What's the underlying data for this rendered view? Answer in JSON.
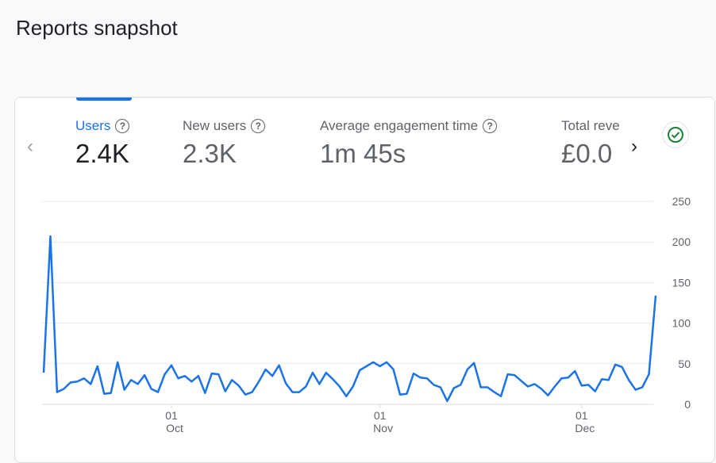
{
  "page_title": "Reports snapshot",
  "metrics": [
    {
      "label": "Users",
      "value": "2.4K",
      "active": true
    },
    {
      "label": "New users",
      "value": "2.3K"
    },
    {
      "label": "Average engagement time",
      "value": "1m 45s"
    },
    {
      "label": "Total reve",
      "value": "£0.0"
    }
  ],
  "nav": {
    "prev_icon": "chevron-left-icon",
    "next_icon": "chevron-right-icon",
    "status_icon": "check-circle-icon"
  },
  "colors": {
    "accent": "#1a73e8",
    "status_ok": "#188038"
  },
  "chart_data": {
    "type": "line",
    "x_start": "Sep 12",
    "x_end": "Dec 12",
    "x_ticks": [
      {
        "day": "01",
        "month": "Oct",
        "index": 19
      },
      {
        "day": "01",
        "month": "Nov",
        "index": 50
      },
      {
        "day": "01",
        "month": "Dec",
        "index": 80
      }
    ],
    "y_ticks": [
      0,
      50,
      100,
      150,
      200,
      250
    ],
    "ylim": [
      0,
      250
    ],
    "grid": true,
    "y_axis_side": "right",
    "values": [
      39,
      207,
      15,
      19,
      27,
      28,
      32,
      25,
      47,
      13,
      14,
      52,
      18,
      30,
      25,
      36,
      19,
      15,
      37,
      48,
      32,
      35,
      28,
      35,
      14,
      38,
      37,
      16,
      30,
      23,
      12,
      15,
      28,
      43,
      35,
      48,
      26,
      15,
      15,
      22,
      39,
      25,
      39,
      31,
      22,
      10,
      22,
      42,
      47,
      52,
      47,
      52,
      43,
      12,
      13,
      38,
      33,
      32,
      24,
      21,
      4,
      20,
      24,
      43,
      51,
      21,
      21,
      15,
      10,
      37,
      36,
      29,
      22,
      25,
      19,
      11,
      22,
      32,
      33,
      41,
      23,
      24,
      16,
      31,
      30,
      49,
      46,
      30,
      18,
      21,
      37,
      134
    ]
  }
}
